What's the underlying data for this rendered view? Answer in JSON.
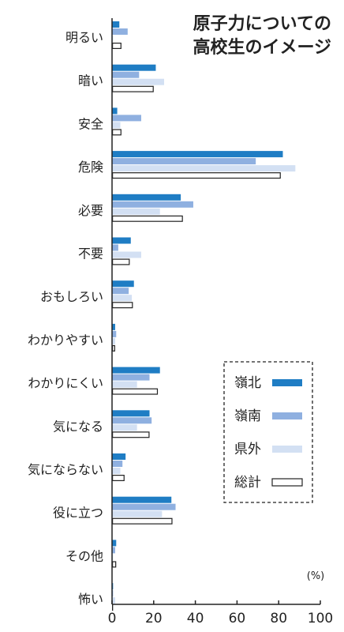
{
  "chart_data": {
    "type": "bar",
    "orientation": "horizontal",
    "title": [
      "原子力についての",
      "高校生のイメージ"
    ],
    "unit": "(%)",
    "categories": [
      "明るい",
      "暗い",
      "安全",
      "危険",
      "必要",
      "不要",
      "おもしろい",
      "わかりやすい",
      "わかりにくい",
      "気になる",
      "気にならない",
      "役に立つ",
      "その他",
      "怖い"
    ],
    "series": [
      {
        "name": "嶺北",
        "color": "#1f7dc4",
        "values": [
          3.5,
          21,
          2.5,
          82,
          33,
          9,
          10.5,
          1.5,
          23,
          18,
          6.5,
          28.5,
          2,
          0.5
        ]
      },
      {
        "name": "嶺南",
        "color": "#8fb0e0",
        "values": [
          7.5,
          13,
          14,
          69,
          39,
          3,
          8,
          2,
          18,
          19,
          5,
          30.5,
          1.5,
          0.5
        ]
      },
      {
        "name": "県外",
        "color": "#d3e0f3",
        "values": [
          0.5,
          25,
          4,
          88,
          23,
          14,
          9.5,
          1.5,
          12,
          12,
          4,
          24,
          0.5,
          1.5
        ]
      },
      {
        "name": "総計",
        "color": "#ffffff",
        "stroke": "#222222",
        "values": [
          4.5,
          20,
          4.5,
          81,
          34,
          8.5,
          10,
          1.5,
          22,
          18,
          6,
          29,
          2,
          0.5
        ]
      }
    ],
    "xlim": [
      0,
      100
    ],
    "xticks": [
      0,
      20,
      40,
      60,
      80,
      100
    ],
    "legend_position": "bottom-right",
    "legend_border": "dashed",
    "grid": false
  }
}
